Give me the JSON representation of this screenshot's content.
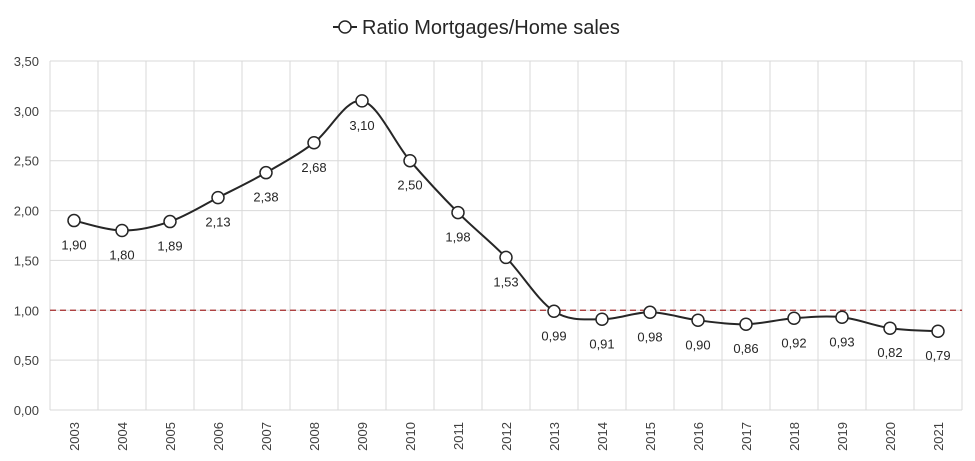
{
  "chart_data": {
    "type": "line",
    "title": "",
    "xlabel": "",
    "ylabel": "",
    "categories": [
      "2003",
      "2004",
      "2005",
      "2006",
      "2007",
      "2008",
      "2009",
      "2010",
      "2011",
      "2012",
      "2013",
      "2014",
      "2015",
      "2016",
      "2017",
      "2018",
      "2019",
      "2020",
      "2021"
    ],
    "series": [
      {
        "name": "Ratio Mortgages/Home sales",
        "values": [
          1.9,
          1.8,
          1.89,
          2.13,
          2.38,
          2.68,
          3.1,
          2.5,
          1.98,
          1.53,
          0.99,
          0.91,
          0.98,
          0.9,
          0.86,
          0.92,
          0.93,
          0.82,
          0.79
        ],
        "labels": [
          "1,90",
          "1,80",
          "1,89",
          "2,13",
          "2,38",
          "2,68",
          "3,10",
          "2,50",
          "1,98",
          "1,53",
          "0,99",
          "0,91",
          "0,98",
          "0,90",
          "0,86",
          "0,92",
          "0,93",
          "0,82",
          "0,79"
        ],
        "line_color": "#262626",
        "marker_fill": "#ffffff",
        "smooth": true
      }
    ],
    "ylim": [
      0,
      3.5
    ],
    "y_ticks": [
      "0,00",
      "0,50",
      "1,00",
      "1,50",
      "2,00",
      "2,50",
      "3,00",
      "3,50"
    ],
    "y_tick_values": [
      0,
      0.5,
      1.0,
      1.5,
      2.0,
      2.5,
      3.0,
      3.5
    ],
    "reference_line": {
      "value": 1.0,
      "color": "#a52a2a",
      "style": "dashed"
    },
    "grid": true,
    "grid_color": "#d9d9d9",
    "legend_position": "top-center"
  }
}
